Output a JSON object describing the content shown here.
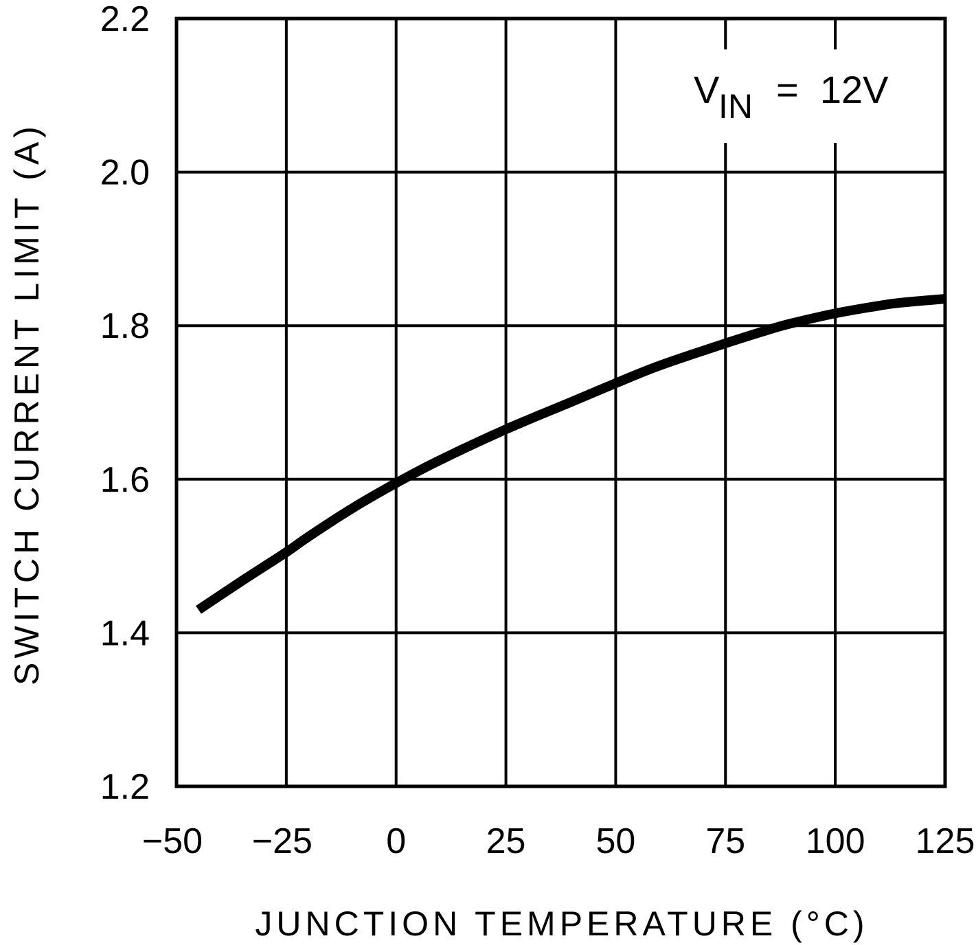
{
  "chart_data": {
    "type": "line",
    "title": "",
    "xlabel": "JUNCTION TEMPERATURE (°C)",
    "ylabel": "SWITCH CURRENT LIMIT (A)",
    "xlim": [
      -50,
      125
    ],
    "ylim": [
      1.2,
      2.2
    ],
    "x_ticks": [
      "-50",
      "-25",
      "0",
      "25",
      "50",
      "75",
      "100",
      "125"
    ],
    "y_ticks": [
      "1.2",
      "1.4",
      "1.6",
      "1.8",
      "2.0",
      "2.2"
    ],
    "grid": true,
    "legend": null,
    "annotations": [
      {
        "text_main": "V",
        "text_sub": "IN",
        "text_rest": " =  12V",
        "position": "top-right"
      }
    ],
    "series": [
      {
        "name": "VIN = 12V",
        "color": "#000000",
        "x": [
          -45,
          -35,
          -25,
          -20,
          -10,
          0,
          10,
          25,
          40,
          50,
          60,
          75,
          85,
          90,
          100,
          110,
          115,
          125
        ],
        "values": [
          1.43,
          1.468,
          1.505,
          1.525,
          1.562,
          1.595,
          1.625,
          1.665,
          1.701,
          1.725,
          1.748,
          1.777,
          1.795,
          1.803,
          1.816,
          1.826,
          1.83,
          1.835
        ]
      }
    ]
  },
  "labels": {
    "xlabel": "JUNCTION TEMPERATURE (°C)",
    "ylabel": "SWITCH CURRENT LIMIT (A)",
    "annot_v": "V",
    "annot_sub": "IN",
    "annot_rest": "=  12V"
  }
}
